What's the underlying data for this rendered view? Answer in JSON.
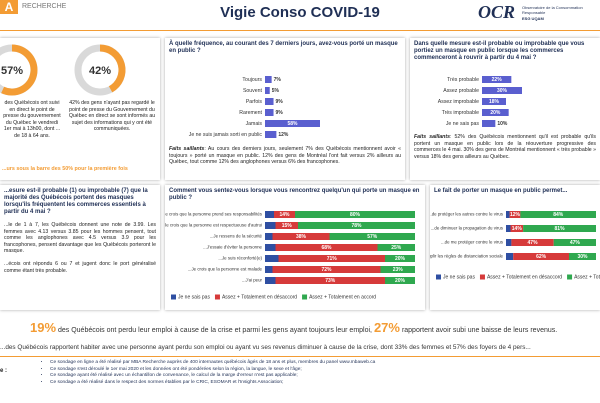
{
  "header": {
    "logo": "RECHERCHE",
    "title": "Vigie Conso COVID-19",
    "ocr": "OCR",
    "ocr_sub": "Observatoire de la Consommation Responsable",
    "ocr_school": "ESG UQAM"
  },
  "press": {
    "donuts": [
      {
        "value": 57,
        "label": "57%"
      },
      {
        "value": 42,
        "label": "42%"
      }
    ],
    "left_text": "des Québécois ont suivi en direct le point de presse du gouvernement du Québec le vendredi 1er mai à 13h00, dont ... de 18 à 64 ans.",
    "right_text": "42% des gens n'ayant pas regardé le point de presse du Gouvernement du Québec en direct se sont informés au sujet des informations qui y ont été communiquées.",
    "note": "...urs sous la barre des 50% pour la première fois"
  },
  "masks_rating": {
    "title": "...esure est-il probable (1) ou improbable (7) que la majorité des Québécois portent des masques lorsqu'ils fréquentent les commerces essentiels à partir du 4 mai ?",
    "text1": "...le de 1 à 7, les Québécois donnent une note de 3.99. Les femmes avec 4.13 versus 3.85 pour les hommes pensent, tout comme les anglophones avec 4.5 versus 3.9 pour les francophones, pensent davantage que les Québécois porteront le masque.",
    "text2": "...écois ont répondu 6 ou 7 et jugent donc le port généralisé comme étant très probable."
  },
  "chart_data": [
    {
      "type": "bar",
      "title": "À quelle fréquence, au courant des 7 derniers jours, avez-vous porté un masque en public ?",
      "categories": [
        "Toujours",
        "Souvent",
        "Parfois",
        "Rarement",
        "Jamais",
        "Je ne suis jamais sorti en public"
      ],
      "values": [
        7,
        5,
        9,
        9,
        58,
        12
      ],
      "value_labels": [
        "7%",
        "5%",
        "9%",
        "9%",
        "58%",
        "12%"
      ],
      "color": "#5a5fcf",
      "note_label": "Faits saillants",
      "note": ": Au cours des derniers jours, seulement 7% des Québécois mentionnent avoir « toujours » porté un masque en public. 12% des gens de Montréal l'ont fait versus 2% ailleurs au Québec, tout comme 12% des anglophones versus 6% des francophones."
    },
    {
      "type": "bar",
      "title": "Dans quelle mesure est-il probable ou improbable que vous portiez un masque en public lorsque les commerces commenceront à rouvrir à partir du 4 mai ?",
      "categories": [
        "Très probable",
        "Assez probable",
        "Assez improbable",
        "Très improbable",
        "Je ne sais pas"
      ],
      "values": [
        22,
        30,
        18,
        20,
        10
      ],
      "value_labels": [
        "22%",
        "30%",
        "18%",
        "20%",
        "10%"
      ],
      "color": "#5a5fcf",
      "note_label": "Faits saillants",
      "note": ": 52% des Québécois mentionnent qu'il est probable qu'ils portent un masque en public lors de la réouverture progressive des commerces le 4 mai. 30% des gens de Montréal mentionnent « très probable » versus 18% des gens ailleurs au Québec."
    },
    {
      "type": "stacked_bar",
      "title": "Comment vous sentez-vous lorsque vous rencontrez quelqu'un qui porte un masque en public ?",
      "categories": [
        "...Je crois que la personne prend ses responsabilités",
        "...Je crois que la personne est respectueuse d'autrui",
        "...Je ressens de la sécurité",
        "...J'essaie d'éviter la personne",
        "...Je suis réconforté(e)",
        "...Je crois que la personne est malade",
        "...J'ai peur"
      ],
      "series": [
        {
          "name": "Je ne sais pas",
          "color": "#2f4fa2",
          "values": [
            6,
            7,
            5,
            7,
            9,
            5,
            7
          ],
          "value_labels": [
            null,
            null,
            null,
            null,
            null,
            null,
            null
          ]
        },
        {
          "name": "Assez + Totalement en désaccord",
          "color": "#d63a3a",
          "values": [
            14,
            15,
            38,
            68,
            71,
            72,
            73
          ],
          "value_labels": [
            "14%",
            "15%",
            "38%",
            "68%",
            "71%",
            "72%",
            "73%"
          ]
        },
        {
          "name": "Assez + Totalement en accord",
          "color": "#2fa84f",
          "values": [
            80,
            78,
            57,
            25,
            20,
            23,
            20
          ],
          "value_labels": [
            "80%",
            "78%",
            "57%",
            "25%",
            "20%",
            "23%",
            "20%"
          ]
        }
      ]
    },
    {
      "type": "stacked_bar",
      "title": "Le fait de porter un masque en public permet...",
      "categories": [
        "...de protéger les autres contre le virus",
        "...de diminuer la propagation du virus",
        "...de me protéger contre le virus",
        "...d'assouplir les règles de distanciation sociale"
      ],
      "series": [
        {
          "name": "Je ne sais pas",
          "color": "#2f4fa2",
          "values": [
            4,
            5,
            6,
            8
          ],
          "value_labels": [
            null,
            null,
            null,
            null
          ]
        },
        {
          "name": "Assez + Totalement en désaccord",
          "color": "#d63a3a",
          "values": [
            12,
            14,
            47,
            62
          ],
          "value_labels": [
            "12%",
            "14%",
            "47%",
            "62%"
          ]
        },
        {
          "name": "Assez + Totalement en accord",
          "color": "#2fa84f",
          "values": [
            84,
            81,
            47,
            30
          ],
          "value_labels": [
            "84%",
            "81%",
            "47%",
            "30%"
          ]
        }
      ]
    }
  ],
  "bottom": {
    "big1": "19%",
    "text1": "des Québécois ont perdu leur emploi à cause de la crise et parmi les gens ayant toujours leur emploi,",
    "big2": "27%",
    "text2": "rapportent avoir subi une baisse de leurs revenus.",
    "line2": "...des Québécois rapportent habiter avec une personne ayant perdu son emploi ou ayant vu ses revenus diminuer à cause de la crise, dont 33% des femmes et 57% des foyers de 4 pers..."
  },
  "notes": {
    "label": "e :",
    "items": [
      "Ce sondage en ligne a été réalisé par MBA Recherche auprès de 400 internautes québécois âgés de 18 ans et plus, membres du panel www.mbaweb.ca",
      "Ce sondage s'est déroulé le 1er mai 2020 et les données ont été pondérées selon la région, la langue, le sexe et l'âge;",
      "Ce sondage ayant été réalisé avec un échantillon de convenance, le calcul de la marge d'erreur n'est pas applicable;",
      "Ce sondage a été réalisé dans le respect des normes établies par le CRIC, ESOMAR et l'Insights Association;"
    ]
  }
}
